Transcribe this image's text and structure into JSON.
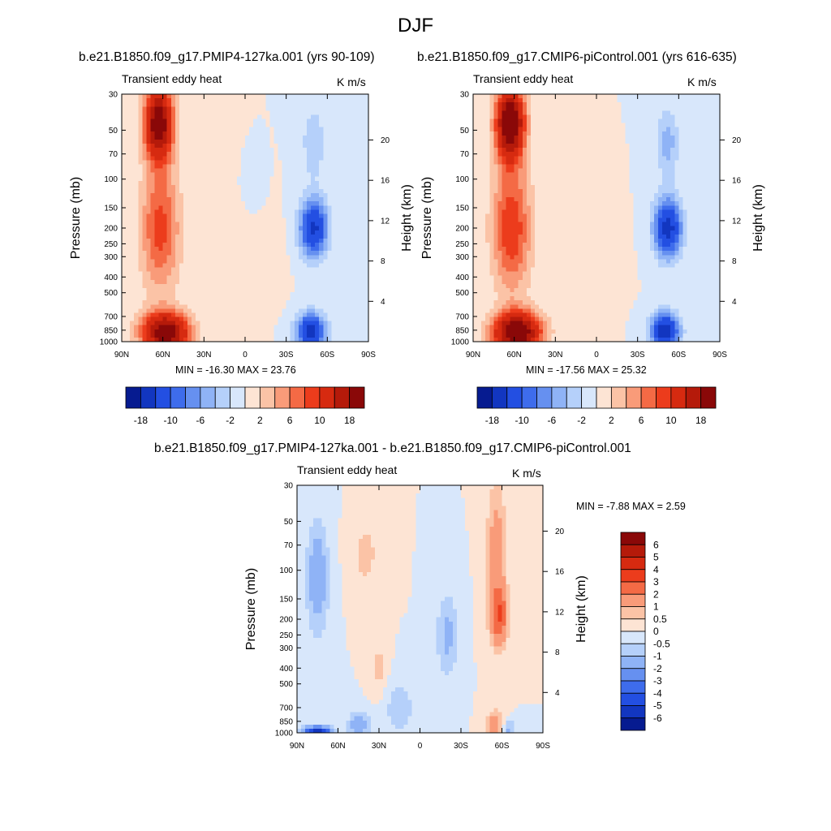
{
  "figure": {
    "title": "DJF"
  },
  "colors": {
    "pos": [
      "#fde4d4",
      "#fbc3a6",
      "#f99b79",
      "#f46a45",
      "#ec3c1c",
      "#d62a10",
      "#b51a0a",
      "#8a0808"
    ],
    "neg": [
      "#d8e7fb",
      "#b5d0fa",
      "#8fb3f6",
      "#6690f0",
      "#3e6cec",
      "#234fe2",
      "#1236c0",
      "#061b90"
    ]
  },
  "chart_data": [
    {
      "type": "contour",
      "title": "b.e21.B1850.f09_g17.PMIP4-127ka.001 (yrs 90-109)",
      "left_label": "Transient eddy heat",
      "right_label": "K m/s",
      "xlabel": "",
      "ylabel": "Pressure (mb)",
      "y2label": "Height (km)",
      "x_ticks": [
        "90N",
        "60N",
        "30N",
        "0",
        "30S",
        "60S",
        "90S"
      ],
      "y_ticks": [
        "30",
        "50",
        "70",
        "100",
        "150",
        "200",
        "250",
        "300",
        "400",
        "500",
        "700",
        "850",
        "1000"
      ],
      "y2_ticks": [
        "20",
        "16",
        "12",
        "8",
        "4"
      ],
      "stats": "MIN = -16.30  MAX = 23.76",
      "min": -16.3,
      "max": 23.76,
      "colorbar_labels": [
        "-18",
        "-10",
        "-6",
        "-2",
        "2",
        "6",
        "10",
        "18"
      ],
      "levels": [
        -18,
        -14,
        -10,
        -8,
        -6,
        -4,
        -2,
        0,
        2,
        4,
        6,
        8,
        10,
        14,
        18
      ],
      "features": [
        {
          "lat": 63,
          "p": 45,
          "value": 22,
          "wlat": 10,
          "wp": 0.5
        },
        {
          "lat": 62,
          "p": 200,
          "value": 9,
          "wlat": 14,
          "wp": 0.9
        },
        {
          "lat": 58,
          "p": 880,
          "value": 21,
          "wlat": 17,
          "wp": 0.28
        },
        {
          "lat": 30,
          "p": 70,
          "value": 2,
          "wlat": 10,
          "wp": 0.7
        },
        {
          "lat": -50,
          "p": 200,
          "value": -15,
          "wlat": 10,
          "wp": 0.4
        },
        {
          "lat": -50,
          "p": 60,
          "value": -4,
          "wlat": 8,
          "wp": 0.5
        },
        {
          "lat": -48,
          "p": 860,
          "value": -16,
          "wlat": 10,
          "wp": 0.25
        },
        {
          "lat": -8,
          "p": 110,
          "value": -2,
          "wlat": 5,
          "wp": 0.25
        },
        {
          "lat": -15,
          "p": 300,
          "value": 1.5,
          "wlat": 12,
          "wp": 0.5
        }
      ]
    },
    {
      "type": "contour",
      "title": "b.e21.B1850.f09_g17.CMIP6-piControl.001 (yrs 616-635)",
      "left_label": "Transient eddy heat",
      "right_label": "K m/s",
      "xlabel": "",
      "ylabel": "Pressure (mb)",
      "y2label": "Height (km)",
      "x_ticks": [
        "90N",
        "60N",
        "30N",
        "0",
        "30S",
        "60S",
        "90S"
      ],
      "y_ticks": [
        "30",
        "50",
        "70",
        "100",
        "150",
        "200",
        "250",
        "300",
        "400",
        "500",
        "700",
        "850",
        "1000"
      ],
      "y2_ticks": [
        "20",
        "16",
        "12",
        "8",
        "4"
      ],
      "stats": "MIN = -17.56  MAX = 25.32",
      "min": -17.56,
      "max": 25.32,
      "colorbar_labels": [
        "-18",
        "-10",
        "-6",
        "-2",
        "2",
        "6",
        "10",
        "18"
      ],
      "levels": [
        -18,
        -14,
        -10,
        -8,
        -6,
        -4,
        -2,
        0,
        2,
        4,
        6,
        8,
        10,
        14,
        18
      ],
      "features": [
        {
          "lat": 63,
          "p": 45,
          "value": 24,
          "wlat": 10,
          "wp": 0.5
        },
        {
          "lat": 62,
          "p": 200,
          "value": 10,
          "wlat": 14,
          "wp": 0.9
        },
        {
          "lat": 58,
          "p": 880,
          "value": 23,
          "wlat": 17,
          "wp": 0.28
        },
        {
          "lat": 30,
          "p": 70,
          "value": 2,
          "wlat": 10,
          "wp": 0.7
        },
        {
          "lat": -52,
          "p": 200,
          "value": -16,
          "wlat": 10,
          "wp": 0.4
        },
        {
          "lat": -52,
          "p": 60,
          "value": -5,
          "wlat": 8,
          "wp": 0.5
        },
        {
          "lat": -50,
          "p": 860,
          "value": -17,
          "wlat": 10,
          "wp": 0.25
        },
        {
          "lat": -5,
          "p": 300,
          "value": 1.5,
          "wlat": 12,
          "wp": 0.5
        }
      ]
    },
    {
      "type": "contour",
      "title": "b.e21.B1850.f09_g17.PMIP4-127ka.001 - b.e21.B1850.f09_g17.CMIP6-piControl.001",
      "left_label": "Transient eddy heat",
      "right_label": "K m/s",
      "xlabel": "",
      "ylabel": "Pressure (mb)",
      "y2label": "Height (km)",
      "x_ticks": [
        "90N",
        "60N",
        "30N",
        "0",
        "30S",
        "60S",
        "90S"
      ],
      "y_ticks": [
        "30",
        "50",
        "70",
        "100",
        "150",
        "200",
        "250",
        "300",
        "400",
        "500",
        "700",
        "850",
        "1000"
      ],
      "y2_ticks": [
        "20",
        "16",
        "12",
        "8",
        "4"
      ],
      "stats": "MIN = -7.88  MAX =   2.59",
      "min": -7.88,
      "max": 2.59,
      "colorbar_labels": [
        "6",
        "5",
        "4",
        "3",
        "2",
        "1",
        "0.5",
        "0",
        "-0.5",
        "-1",
        "-2",
        "-3",
        "-4",
        "-5",
        "-6"
      ],
      "levels": [
        -6,
        -5,
        -4,
        -3,
        -2,
        -1,
        -0.5,
        0,
        0.5,
        1,
        2,
        3,
        4,
        5,
        6
      ],
      "features": [
        {
          "lat": 75,
          "p": 110,
          "value": -1.6,
          "wlat": 8,
          "wp": 0.8
        },
        {
          "lat": 75,
          "p": 980,
          "value": -6,
          "wlat": 10,
          "wp": 0.07
        },
        {
          "lat": 45,
          "p": 900,
          "value": -1.5,
          "wlat": 8,
          "wp": 0.2
        },
        {
          "lat": 40,
          "p": 80,
          "value": 0.7,
          "wlat": 10,
          "wp": 0.5
        },
        {
          "lat": 30,
          "p": 400,
          "value": 0.7,
          "wlat": 6,
          "wp": 0.4
        },
        {
          "lat": 15,
          "p": 700,
          "value": -0.8,
          "wlat": 12,
          "wp": 0.4
        },
        {
          "lat": -20,
          "p": 250,
          "value": -1.2,
          "wlat": 8,
          "wp": 0.6
        },
        {
          "lat": -58,
          "p": 190,
          "value": 2.6,
          "wlat": 6,
          "wp": 0.4
        },
        {
          "lat": -56,
          "p": 80,
          "value": 1.5,
          "wlat": 7,
          "wp": 1.0
        },
        {
          "lat": -55,
          "p": 900,
          "value": 1.6,
          "wlat": 6,
          "wp": 0.2
        },
        {
          "lat": -65,
          "p": 950,
          "value": -1.2,
          "wlat": 6,
          "wp": 0.12
        }
      ]
    }
  ]
}
